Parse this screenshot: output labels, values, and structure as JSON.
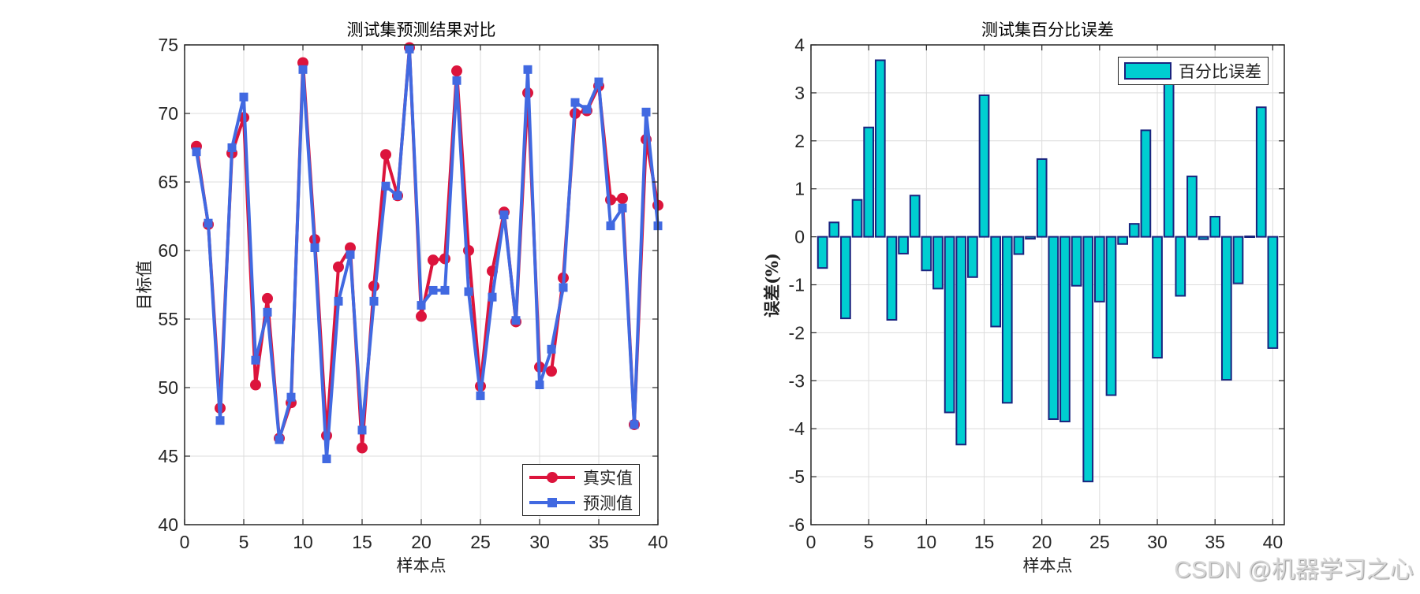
{
  "figure": {
    "watermark": "CSDN @机器学习之心"
  },
  "left_chart": {
    "title": "测试集预测结果对比",
    "xlabel": "样本点",
    "ylabel": "目标值",
    "legend": [
      {
        "label": "真实值",
        "color": "#dc143c",
        "marker": "circle"
      },
      {
        "label": "预测值",
        "color": "#4169e1",
        "marker": "square"
      }
    ]
  },
  "right_chart": {
    "title": "测试集百分比误差",
    "xlabel": "样本点",
    "ylabel": "误差(%)",
    "legend": [
      {
        "label": "百分比误差",
        "color": "#00ced1",
        "edge": "#1a237e"
      }
    ]
  },
  "chart_data": [
    {
      "type": "line",
      "title": "测试集预测结果对比",
      "xlabel": "样本点",
      "ylabel": "目标值",
      "xlim": [
        0,
        40
      ],
      "ylim": [
        40,
        75
      ],
      "xticks": [
        0,
        5,
        10,
        15,
        20,
        25,
        30,
        35,
        40
      ],
      "yticks": [
        40,
        45,
        50,
        55,
        60,
        65,
        70,
        75
      ],
      "grid": true,
      "legend_position": "southeast",
      "x": [
        1,
        2,
        3,
        4,
        5,
        6,
        7,
        8,
        9,
        10,
        11,
        12,
        13,
        14,
        15,
        16,
        17,
        18,
        19,
        20,
        21,
        22,
        23,
        24,
        25,
        26,
        27,
        28,
        29,
        30,
        31,
        32,
        33,
        34,
        35,
        36,
        37,
        38,
        39,
        40
      ],
      "series": [
        {
          "name": "真实值",
          "color": "#dc143c",
          "marker": "circle",
          "values": [
            67.6,
            61.9,
            48.5,
            67.1,
            69.7,
            50.2,
            56.5,
            46.3,
            48.9,
            73.7,
            60.8,
            46.5,
            58.8,
            60.2,
            45.6,
            57.4,
            67.0,
            64.0,
            74.8,
            55.2,
            59.3,
            59.4,
            73.1,
            60.0,
            50.1,
            58.5,
            62.8,
            54.8,
            71.5,
            51.5,
            51.2,
            58.0,
            70.0,
            70.2,
            72.0,
            63.7,
            63.8,
            47.3,
            68.1,
            63.3
          ]
        },
        {
          "name": "预测值",
          "color": "#4169e1",
          "marker": "square",
          "values": [
            67.2,
            62.0,
            47.6,
            67.5,
            71.2,
            52.0,
            55.5,
            46.2,
            49.3,
            73.2,
            60.2,
            44.8,
            56.3,
            59.7,
            46.9,
            56.3,
            64.7,
            64.0,
            74.7,
            56.0,
            57.1,
            57.1,
            72.4,
            57.0,
            49.4,
            56.6,
            62.6,
            54.9,
            73.2,
            50.2,
            52.8,
            57.3,
            70.8,
            70.3,
            72.3,
            61.8,
            63.1,
            47.3,
            70.1,
            61.8
          ]
        }
      ]
    },
    {
      "type": "bar",
      "title": "测试集百分比误差",
      "xlabel": "样本点",
      "ylabel": "误差(%)",
      "xlim": [
        0,
        41
      ],
      "ylim": [
        -6,
        4
      ],
      "xticks": [
        0,
        5,
        10,
        15,
        20,
        25,
        30,
        35,
        40
      ],
      "yticks": [
        -6,
        -5,
        -4,
        -3,
        -2,
        -1,
        0,
        1,
        2,
        3,
        4
      ],
      "grid": true,
      "legend_position": "northeast",
      "categories": [
        1,
        2,
        3,
        4,
        5,
        6,
        7,
        8,
        9,
        10,
        11,
        12,
        13,
        14,
        15,
        16,
        17,
        18,
        19,
        20,
        21,
        22,
        23,
        24,
        25,
        26,
        27,
        28,
        29,
        30,
        31,
        32,
        33,
        34,
        35,
        36,
        37,
        38,
        39,
        40
      ],
      "series": [
        {
          "name": "百分比误差",
          "color": "#00ced1",
          "edge": "#1a237e",
          "values": [
            -0.65,
            0.3,
            -1.7,
            0.77,
            2.28,
            3.68,
            -1.73,
            -0.35,
            0.86,
            -0.7,
            -1.08,
            -3.66,
            -4.33,
            -0.84,
            2.95,
            -1.87,
            -3.46,
            -0.36,
            -0.04,
            1.62,
            -3.8,
            -3.85,
            -1.02,
            -5.1,
            -1.35,
            -3.3,
            -0.15,
            0.27,
            2.22,
            -2.52,
            3.3,
            -1.23,
            1.26,
            -0.05,
            0.42,
            -2.98,
            -0.97,
            0.01,
            2.7,
            -2.32
          ]
        }
      ]
    }
  ]
}
